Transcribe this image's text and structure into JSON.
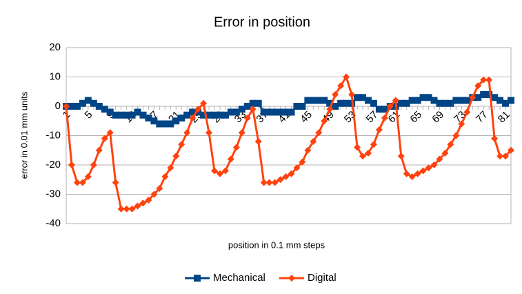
{
  "chart_data": {
    "type": "line",
    "title": "Error in position",
    "x_label": "position in 0.1 mm steps",
    "y_label": "error in 0.01 mm units",
    "categories": [
      "1",
      null,
      null,
      null,
      "5",
      null,
      null,
      null,
      "9",
      null,
      null,
      null,
      "13",
      null,
      null,
      null,
      "17",
      null,
      null,
      null,
      "21",
      null,
      null,
      null,
      "25",
      null,
      null,
      null,
      "29",
      null,
      null,
      null,
      "33",
      null,
      null,
      null,
      "37",
      null,
      null,
      null,
      "41",
      null,
      null,
      null,
      "45",
      null,
      null,
      null,
      "49",
      null,
      null,
      null,
      "53",
      null,
      null,
      null,
      "57",
      null,
      null,
      null,
      "61",
      null,
      null,
      null,
      "65",
      null,
      null,
      null,
      "69",
      null,
      null,
      null,
      "73",
      null,
      null,
      null,
      "77",
      null,
      null,
      null,
      "81",
      null
    ],
    "series": [
      {
        "name": "Mechanical",
        "color": "#004586",
        "marker": "square",
        "values": [
          0,
          0,
          0,
          1,
          2,
          1,
          0,
          -1,
          -2,
          -3,
          -3,
          -3,
          -3,
          -2,
          -3,
          -4,
          -5,
          -6,
          -6,
          -6,
          -5,
          -4,
          -3,
          -2,
          -2,
          -3,
          -3,
          -3,
          -3,
          -3,
          -2,
          -2,
          -1,
          0,
          1,
          1,
          -2,
          -2,
          -2,
          -2,
          -2,
          -2,
          0,
          0,
          2,
          2,
          2,
          2,
          1,
          0,
          1,
          1,
          1,
          3,
          3,
          2,
          1,
          -1,
          -1,
          0,
          0,
          1,
          1,
          2,
          2,
          3,
          3,
          2,
          1,
          1,
          1,
          2,
          2,
          2,
          3,
          3,
          4,
          4,
          3,
          2,
          1,
          2
        ]
      },
      {
        "name": "Digital",
        "color": "#ff420e",
        "marker": "diamond",
        "values": [
          0,
          -20,
          -26,
          -26,
          -24,
          -20,
          -15,
          -11,
          -9,
          -26,
          -35,
          -35,
          -35,
          -34,
          -33,
          -32,
          -30,
          -28,
          -24,
          -21,
          -17,
          -13,
          -9,
          -4,
          -1,
          1,
          -9,
          -22,
          -23,
          -22,
          -18,
          -14,
          -9,
          -4,
          -1,
          -12,
          -26,
          -26,
          -26,
          -25,
          -24,
          -23,
          -21,
          -19,
          -15,
          -12,
          -9,
          -5,
          -1,
          4,
          7,
          10,
          4,
          -14,
          -17,
          -16,
          -13,
          -8,
          -4,
          0,
          2,
          -17,
          -23,
          -24,
          -23,
          -22,
          -21,
          -20,
          -18,
          -16,
          -13,
          -10,
          -6,
          -2,
          3,
          7,
          9,
          9,
          -11,
          -17,
          -17,
          -15
        ]
      }
    ],
    "ylim": [
      -40,
      20
    ],
    "yticks": [
      -40,
      -30,
      -20,
      -10,
      0,
      10,
      20
    ],
    "grid": true,
    "legend": "bottom"
  }
}
